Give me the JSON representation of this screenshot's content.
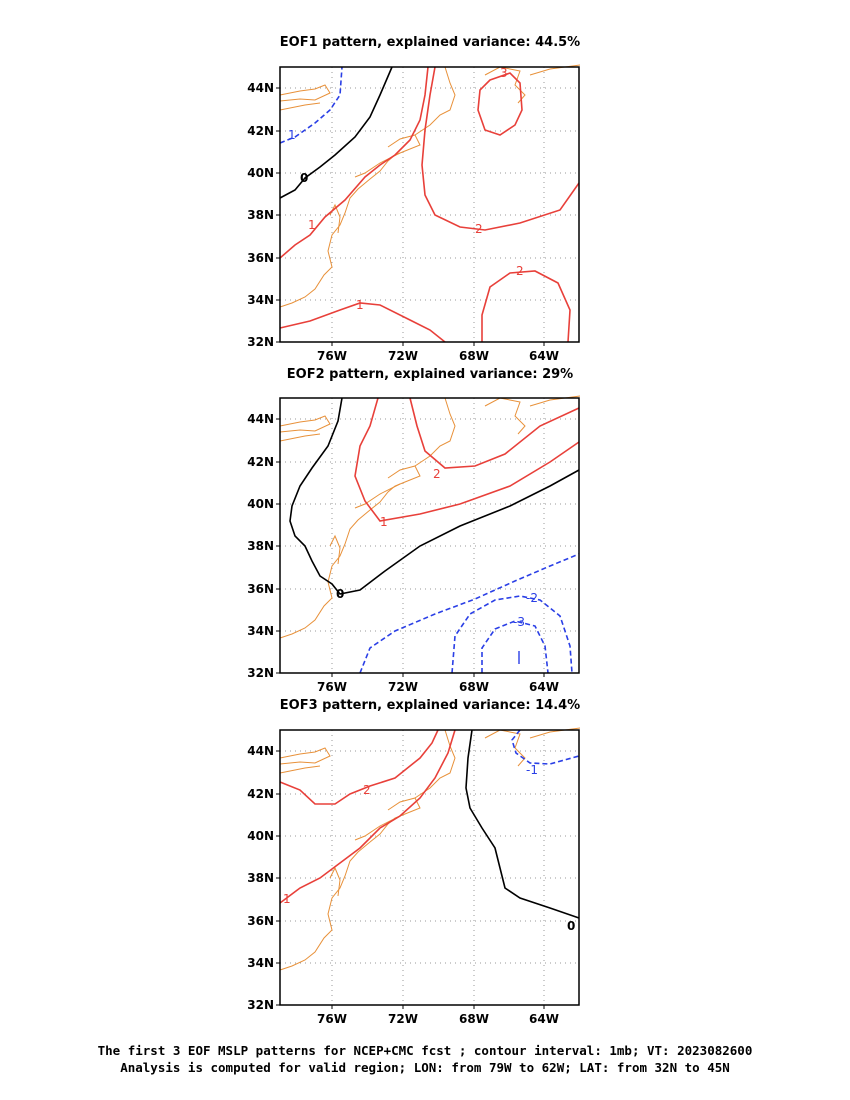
{
  "panels": [
    {
      "title": "EOF1 pattern, explained variance: 44.5%",
      "contour_labels": [
        {
          "text": "3",
          "color": "red"
        },
        {
          "text": "1",
          "color": "blue"
        },
        {
          "text": "0",
          "color": "black"
        },
        {
          "text": "1",
          "color": "red"
        },
        {
          "text": "2",
          "color": "red"
        },
        {
          "text": "2",
          "color": "red"
        },
        {
          "text": "1",
          "color": "red"
        }
      ]
    },
    {
      "title": "EOF2 pattern, explained variance: 29%",
      "contour_labels": [
        {
          "text": "2",
          "color": "red"
        },
        {
          "text": "1",
          "color": "red"
        },
        {
          "text": "0",
          "color": "black"
        },
        {
          "text": "-2",
          "color": "blue"
        },
        {
          "text": "-3",
          "color": "blue"
        }
      ]
    },
    {
      "title": "EOF3 pattern, explained variance: 14.4%",
      "contour_labels": [
        {
          "text": "-1",
          "color": "blue"
        },
        {
          "text": "2",
          "color": "red"
        },
        {
          "text": "1",
          "color": "red"
        },
        {
          "text": "0",
          "color": "black"
        }
      ]
    }
  ],
  "axes": {
    "lat_ticks": [
      "44N",
      "42N",
      "40N",
      "38N",
      "36N",
      "34N",
      "32N"
    ],
    "lon_ticks": [
      "76W",
      "72W",
      "68W",
      "64W"
    ]
  },
  "caption": {
    "line1": "The first 3 EOF MSLP patterns for NCEP+CMC fcst ; contour interval: 1mb; VT: 2023082600",
    "line2": "Analysis is computed for valid region; LON: from 79W to 62W; LAT: from 32N to 45N"
  },
  "colors": {
    "positive": "#e8403a",
    "negative": "#2a3fe6",
    "zero": "#000000",
    "coastline": "#e8913a",
    "grid": "#9a9a9a"
  }
}
